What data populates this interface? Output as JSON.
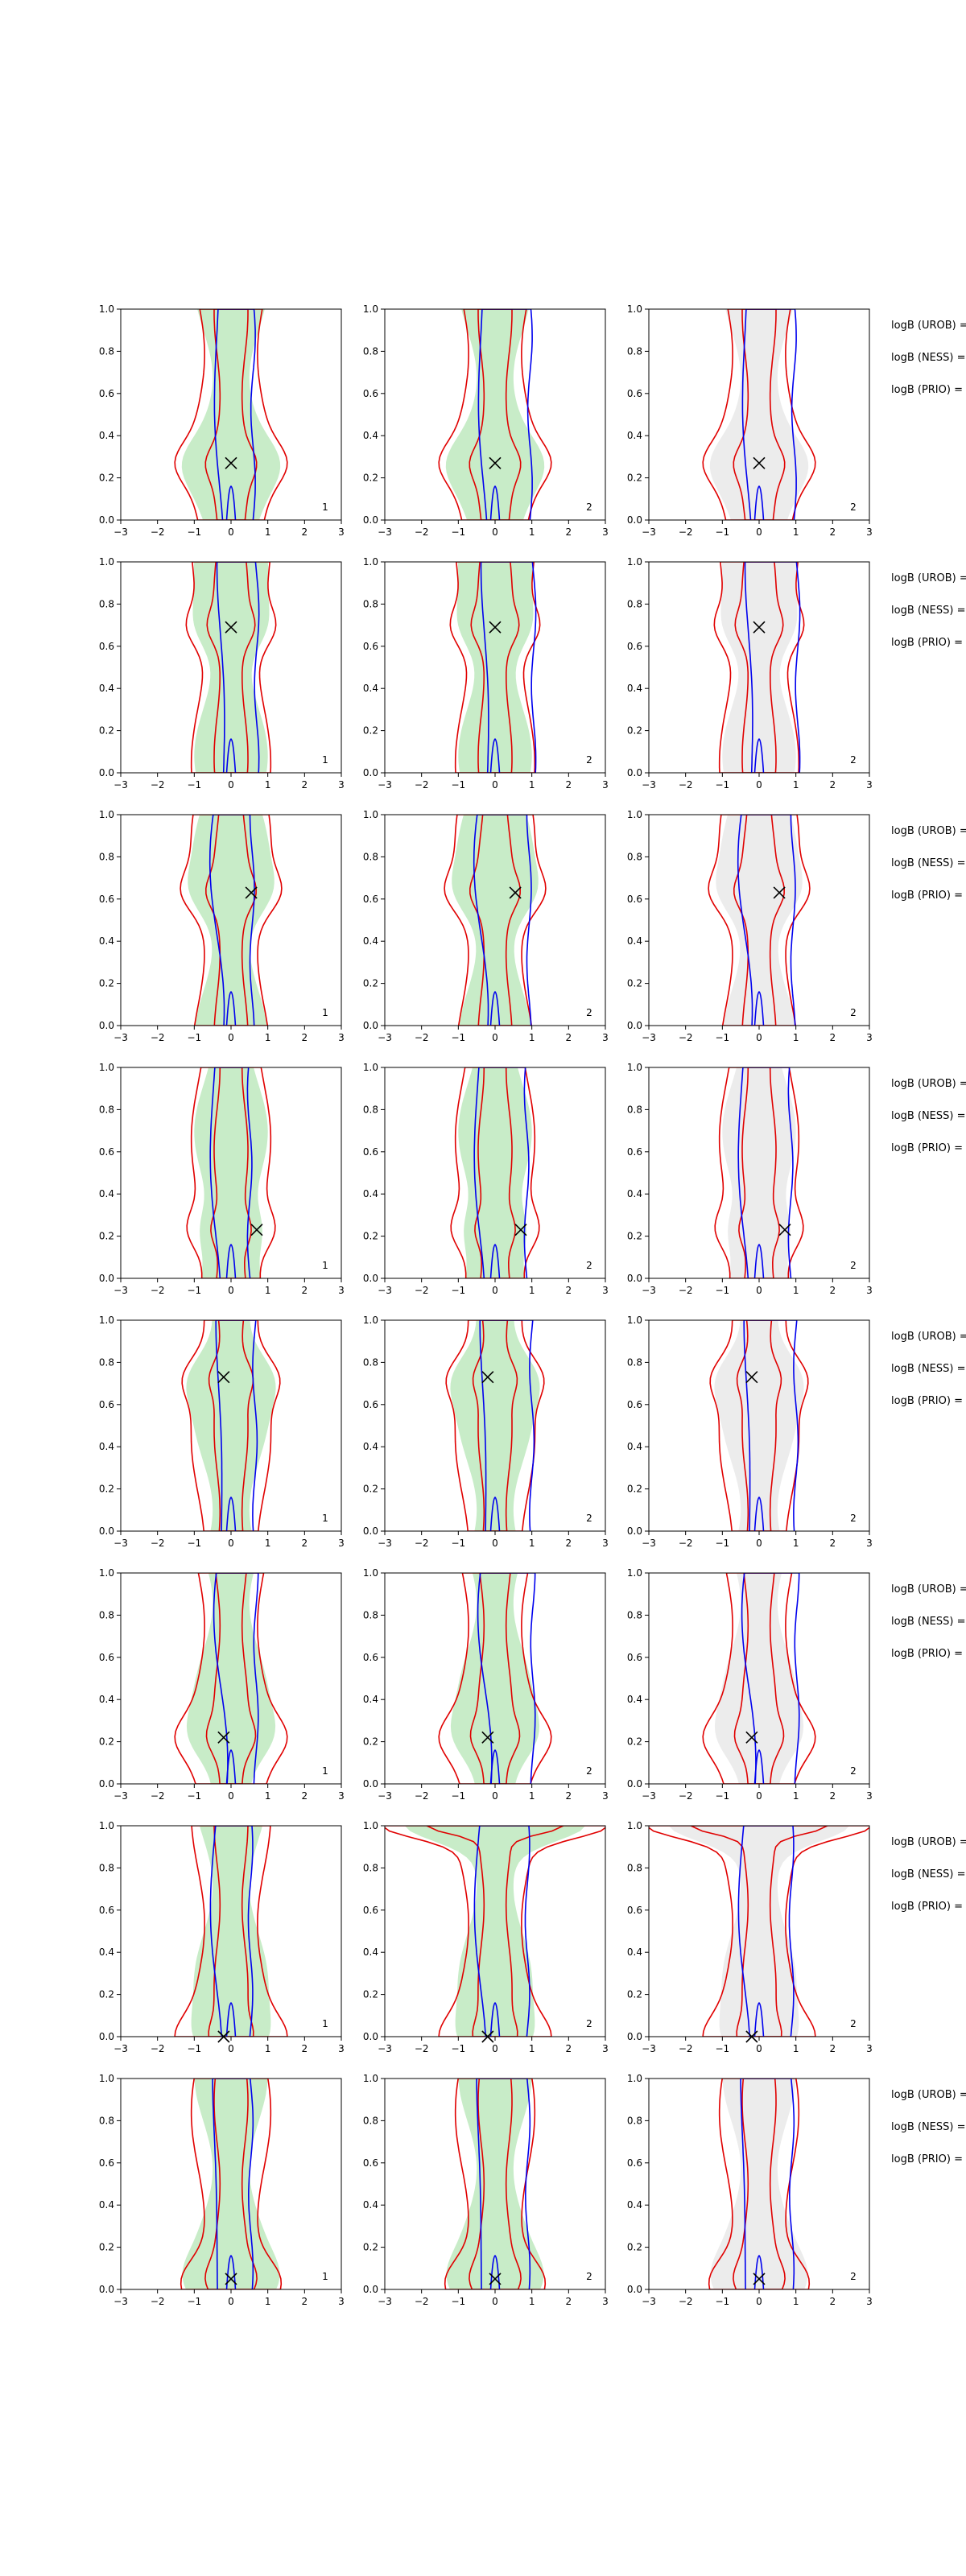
{
  "chart_data": {
    "type": "contour",
    "layout": {
      "rows": 8,
      "cols": 3
    },
    "axes": {
      "xlim": [
        -3,
        3
      ],
      "ylim": [
        0.0,
        1.0
      ],
      "xticks": [
        "−3",
        "−2",
        "−1",
        "0",
        "1",
        "2",
        "3"
      ],
      "yticks": [
        "0.0",
        "0.2",
        "0.4",
        "0.6",
        "0.8",
        "1.0"
      ]
    },
    "colors": {
      "fill_green": "#c8ecc8",
      "fill_grey": "#ececec",
      "contour_red": "#e00000",
      "contour_blue": "#0000ee",
      "marker": "#000000"
    },
    "panel_labels": [
      "1",
      "2",
      "2"
    ],
    "side_labels": [
      "logB (UROB) =",
      "logB (NESS) =",
      "logB (PRIO) ="
    ],
    "rows": [
      {
        "marker": [
          0.0,
          0.27
        ],
        "panels": [
          {
            "fill": "green",
            "label": "1"
          },
          {
            "fill": "green",
            "label": "2"
          },
          {
            "fill": "grey",
            "label": "2"
          }
        ]
      },
      {
        "marker": [
          0.0,
          0.69
        ],
        "panels": [
          {
            "fill": "green",
            "label": "1"
          },
          {
            "fill": "green",
            "label": "2"
          },
          {
            "fill": "grey",
            "label": "2"
          }
        ]
      },
      {
        "marker": [
          0.55,
          0.63
        ],
        "panels": [
          {
            "fill": "green",
            "label": "1"
          },
          {
            "fill": "green",
            "label": "2"
          },
          {
            "fill": "grey",
            "label": "2"
          }
        ]
      },
      {
        "marker": [
          0.7,
          0.23
        ],
        "panels": [
          {
            "fill": "green",
            "label": "1"
          },
          {
            "fill": "green",
            "label": "2"
          },
          {
            "fill": "grey",
            "label": "2"
          }
        ]
      },
      {
        "marker": [
          -0.2,
          0.73
        ],
        "panels": [
          {
            "fill": "green",
            "label": "1"
          },
          {
            "fill": "green",
            "label": "2"
          },
          {
            "fill": "grey",
            "label": "2"
          }
        ]
      },
      {
        "marker": [
          -0.2,
          0.22
        ],
        "panels": [
          {
            "fill": "green",
            "label": "1"
          },
          {
            "fill": "green",
            "label": "2"
          },
          {
            "fill": "grey",
            "label": "2"
          }
        ]
      },
      {
        "marker": [
          -0.2,
          0.0
        ],
        "panels": [
          {
            "fill": "green",
            "label": "1"
          },
          {
            "fill": "green",
            "label": "2"
          },
          {
            "fill": "grey",
            "label": "2"
          }
        ]
      },
      {
        "marker": [
          0.0,
          0.05
        ],
        "panels": [
          {
            "fill": "green",
            "label": "1"
          },
          {
            "fill": "green",
            "label": "2"
          },
          {
            "fill": "grey",
            "label": "2"
          }
        ]
      }
    ]
  }
}
